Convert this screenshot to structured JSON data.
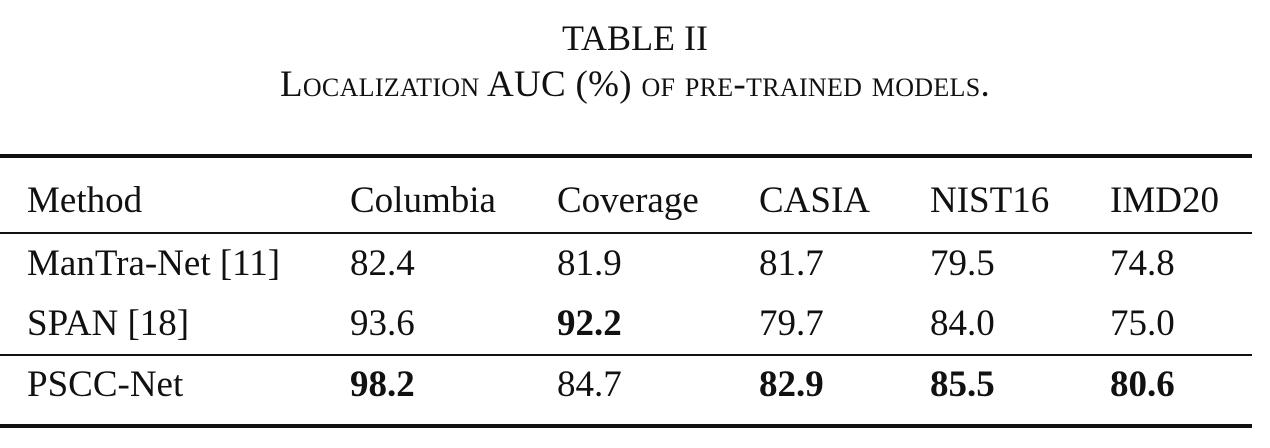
{
  "caption": {
    "label": "TABLE II",
    "title": "Localization AUC (%) of pre-trained models."
  },
  "table": {
    "headers": [
      "Method",
      "Columbia",
      "Coverage",
      "CASIA",
      "NIST16",
      "IMD20"
    ],
    "rows": [
      {
        "cells": [
          "ManTra-Net [11]",
          "82.4",
          "81.9",
          "81.7",
          "79.5",
          "74.8"
        ],
        "bold": [
          false,
          false,
          false,
          false,
          false,
          false
        ]
      },
      {
        "cells": [
          "SPAN [18]",
          "93.6",
          "92.2",
          "79.7",
          "84.0",
          "75.0"
        ],
        "bold": [
          false,
          false,
          true,
          false,
          false,
          false
        ]
      },
      {
        "cells": [
          "PSCC-Net",
          "98.2",
          "84.7",
          "82.9",
          "85.5",
          "80.6"
        ],
        "bold": [
          false,
          true,
          false,
          true,
          true,
          true
        ]
      }
    ]
  }
}
